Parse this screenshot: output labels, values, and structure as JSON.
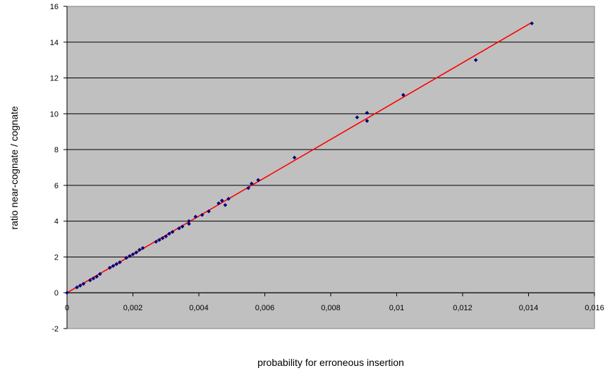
{
  "chart_data": {
    "type": "scatter",
    "title": "",
    "xlabel": "probability for erroneous insertion",
    "ylabel": "ratio near-cognate / cognate",
    "xlim": [
      0,
      0.016
    ],
    "ylim": [
      -2,
      16
    ],
    "x_ticks": [
      0,
      0.002,
      0.004,
      0.006,
      0.008,
      0.01,
      0.012,
      0.014,
      0.016
    ],
    "x_tick_labels": [
      "0",
      "0,002",
      "0,004",
      "0,006",
      "0,008",
      "0,01",
      "0,012",
      "0,014",
      "0,016"
    ],
    "y_ticks": [
      -2,
      0,
      2,
      4,
      6,
      8,
      10,
      12,
      14,
      16
    ],
    "y_tick_labels": [
      "-2",
      "0",
      "2",
      "4",
      "6",
      "8",
      "10",
      "12",
      "14",
      "16"
    ],
    "grid": "horizontal",
    "legend": "none",
    "colors": {
      "plot_background": "#c0c0c0",
      "points": "#000080",
      "trendline": "#ff0000",
      "gridline": "#000000"
    },
    "trendline": {
      "x": [
        0,
        0.0141
      ],
      "y": [
        0,
        15.1
      ]
    },
    "points": [
      [
        0.0,
        0.0
      ],
      [
        0.0003,
        0.3
      ],
      [
        0.0004,
        0.4
      ],
      [
        0.0005,
        0.5
      ],
      [
        0.0007,
        0.7
      ],
      [
        0.0008,
        0.8
      ],
      [
        0.0009,
        0.9
      ],
      [
        0.001,
        1.05
      ],
      [
        0.0013,
        1.4
      ],
      [
        0.0014,
        1.5
      ],
      [
        0.0015,
        1.6
      ],
      [
        0.0016,
        1.7
      ],
      [
        0.0018,
        1.95
      ],
      [
        0.0019,
        2.05
      ],
      [
        0.002,
        2.15
      ],
      [
        0.0021,
        2.25
      ],
      [
        0.0022,
        2.4
      ],
      [
        0.0023,
        2.5
      ],
      [
        0.0027,
        2.85
      ],
      [
        0.0028,
        2.95
      ],
      [
        0.0029,
        3.05
      ],
      [
        0.003,
        3.15
      ],
      [
        0.0031,
        3.3
      ],
      [
        0.0032,
        3.4
      ],
      [
        0.0034,
        3.6
      ],
      [
        0.0035,
        3.7
      ],
      [
        0.0037,
        3.85
      ],
      [
        0.0037,
        4.0
      ],
      [
        0.0039,
        4.25
      ],
      [
        0.0041,
        4.35
      ],
      [
        0.0043,
        4.55
      ],
      [
        0.0046,
        5.0
      ],
      [
        0.0047,
        5.15
      ],
      [
        0.0048,
        4.9
      ],
      [
        0.0049,
        5.25
      ],
      [
        0.0055,
        5.85
      ],
      [
        0.0056,
        6.1
      ],
      [
        0.0058,
        6.3
      ],
      [
        0.0069,
        7.55
      ],
      [
        0.0088,
        9.8
      ],
      [
        0.0091,
        10.05
      ],
      [
        0.0091,
        9.6
      ],
      [
        0.0102,
        11.05
      ],
      [
        0.0124,
        13.0
      ],
      [
        0.0141,
        15.05
      ]
    ]
  }
}
